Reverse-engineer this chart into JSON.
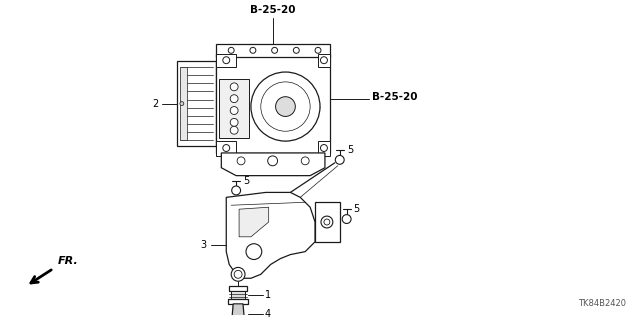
{
  "background_color": "#ffffff",
  "part_number": "TK84B2420",
  "labels": {
    "B_25_20_top": "B-25-20",
    "B_25_20_right": "B-25-20",
    "label2": "2",
    "label3": "3",
    "label4": "4",
    "label5a": "5",
    "label5b": "5",
    "label5c": "5",
    "label1": "1",
    "fr_label": "FR."
  },
  "line_color": "#1a1a1a",
  "text_color": "#000000"
}
